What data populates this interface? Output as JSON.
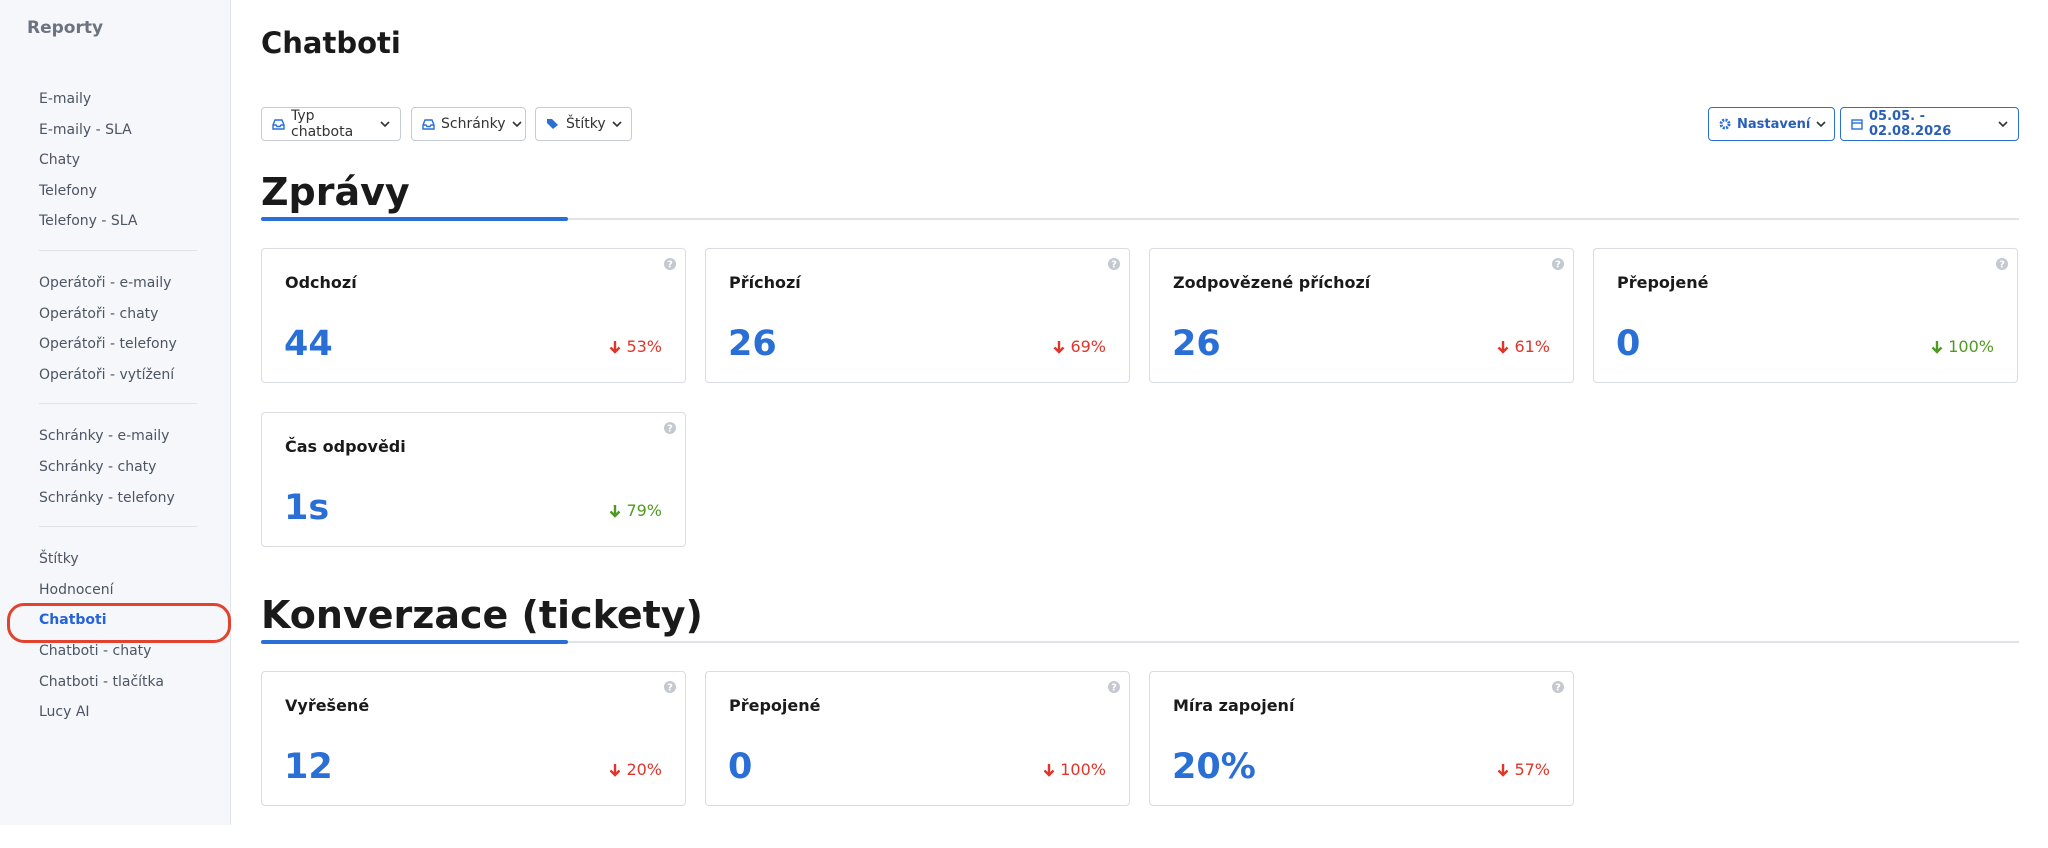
{
  "sidebar": {
    "title": "Reporty",
    "groups": [
      [
        "E-maily",
        "E-maily - SLA",
        "Chaty",
        "Telefony",
        "Telefony - SLA"
      ],
      [
        "Operátoři - e-maily",
        "Operátoři - chaty",
        "Operátoři - telefony",
        "Operátoři - vytížení"
      ],
      [
        "Schránky - e-maily",
        "Schránky - chaty",
        "Schránky - telefony"
      ],
      [
        "Štítky",
        "Hodnocení",
        "Chatboti",
        "Chatboti - chaty",
        "Chatboti - tlačítka",
        "Lucy AI"
      ]
    ],
    "active": [
      3,
      2
    ]
  },
  "header": {
    "title": "Chatboti",
    "filters": [
      "Typ chatbota",
      "Schránky",
      "Štítky"
    ],
    "settings": "Nastavení",
    "date_range": "05.05. - 02.08.2026"
  },
  "sections": [
    {
      "title": "Zprávy",
      "cards": [
        {
          "label": "Odchozí",
          "value": "44",
          "change": "53%",
          "change_color": "#e0352b"
        },
        {
          "label": "Příchozí",
          "value": "26",
          "change": "69%",
          "change_color": "#e0352b"
        },
        {
          "label": "Zodpovězené příchozí",
          "value": "26",
          "change": "61%",
          "change_color": "#e0352b"
        },
        {
          "label": "Přepojené",
          "value": "0",
          "change": "100%",
          "change_color": "#4f9a22"
        },
        {
          "label": "Čas odpovědi",
          "value": "1s",
          "change": "79%",
          "change_color": "#4f9a22"
        }
      ]
    },
    {
      "title": "Konverzace (tickety)",
      "cards": [
        {
          "label": "Vyřešené",
          "value": "12",
          "change": "20%",
          "change_color": "#e0352b"
        },
        {
          "label": "Přepojené",
          "value": "0",
          "change": "100%",
          "change_color": "#e0352b"
        },
        {
          "label": "Míra zapojení",
          "value": "20%",
          "change": "57%",
          "change_color": "#e0352b"
        }
      ]
    }
  ]
}
